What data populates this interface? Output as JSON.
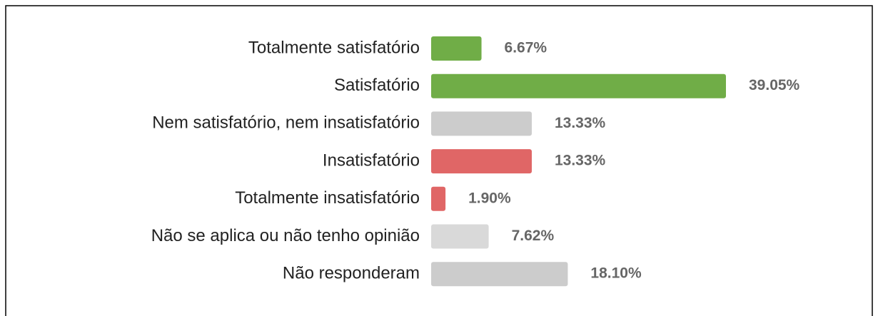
{
  "chart_data": {
    "type": "bar",
    "orientation": "horizontal",
    "categories": [
      "Totalmente satisfatório",
      "Satisfatório",
      "Nem satisfatório, nem insatisfatório",
      "Insatisfatório",
      "Totalmente insatisfatório",
      "Não se aplica ou não tenho opinião",
      "Não responderam"
    ],
    "values": [
      6.67,
      39.05,
      13.33,
      13.33,
      1.9,
      7.62,
      18.1
    ],
    "value_labels": [
      "6.67%",
      "39.05%",
      "13.33%",
      "13.33%",
      "1.90%",
      "7.62%",
      "18.10%"
    ],
    "colors": [
      "#70ad47",
      "#70ad47",
      "#cccccc",
      "#e06666",
      "#e06666",
      "#d9d9d9",
      "#cccccc"
    ]
  }
}
